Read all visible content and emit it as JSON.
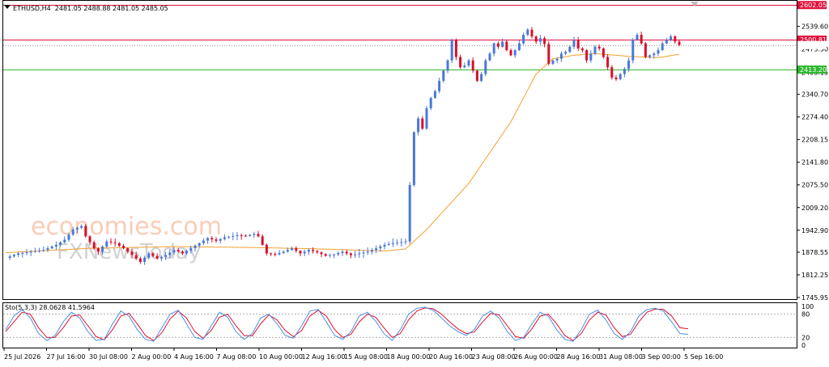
{
  "header": {
    "symbol": "ETHUSD,H4",
    "ohlc": "2481.05 2488.88 2481.05 2485.05"
  },
  "stoch_header": "Sto(5,3,3) 28.0628 41.5964",
  "watermark": {
    "line1": "economies.com",
    "line2": "FXNewsToday"
  },
  "chart_data": {
    "type": "candlestick",
    "title": "ETHUSD,H4",
    "ohlc_text": "2481.05 2488.88 2481.05 2485.05",
    "y_ticks": [
      2539.6,
      2405.15,
      2340.7,
      2274.4,
      2208.15,
      2141.8,
      2075.5,
      2009.2,
      1942.9,
      1878.55,
      1812.25,
      1745.95
    ],
    "ylim": [
      1745.95,
      2605
    ],
    "x_ticks": [
      "25 Jul 2026",
      "27 Jul 16:00",
      "30 Jul 08:00",
      "2 Aug 00:00",
      "4 Aug 16:00",
      "7 Aug 08:00",
      "10 Aug 00:00",
      "12 Aug 16:00",
      "15 Aug 08:00",
      "18 Aug 00:00",
      "20 Aug 16:00",
      "23 Aug 08:00",
      "26 Aug 00:00",
      "28 Aug 16:00",
      "31 Aug 08:00",
      "3 Sep 00:00",
      "5 Sep 16:00"
    ],
    "horizontal_lines": [
      {
        "value": 2602.05,
        "label": "2602.05",
        "color": "#e0113c"
      },
      {
        "value": 2500.81,
        "label": "2500.81",
        "color": "#e0113c"
      },
      {
        "value": 2413.2,
        "label": "2413.20",
        "color": "#2eb82e"
      }
    ],
    "current_price": {
      "value": 2485.05,
      "label": "2485.05"
    },
    "hidden_tick_label": "2473.50",
    "colors": {
      "up": "#4a78d8",
      "down": "#d8102c",
      "ma": "#f5a030",
      "stoch_main": "#4a90e2",
      "stoch_signal": "#e0112b"
    },
    "price_waypoints": [
      [
        0,
        1862
      ],
      [
        3,
        1875
      ],
      [
        6,
        1880
      ],
      [
        9,
        1885
      ],
      [
        12,
        1900
      ],
      [
        14,
        1915
      ],
      [
        16,
        1945
      ],
      [
        18,
        1955
      ],
      [
        19,
        1925
      ],
      [
        21,
        1890
      ],
      [
        22,
        1880
      ],
      [
        24,
        1910
      ],
      [
        26,
        1905
      ],
      [
        28,
        1890
      ],
      [
        30,
        1870
      ],
      [
        32,
        1850
      ],
      [
        34,
        1875
      ],
      [
        36,
        1860
      ],
      [
        38,
        1870
      ],
      [
        40,
        1885
      ],
      [
        42,
        1875
      ],
      [
        44,
        1890
      ],
      [
        46,
        1905
      ],
      [
        48,
        1920
      ],
      [
        50,
        1912
      ],
      [
        52,
        1922
      ],
      [
        55,
        1928
      ],
      [
        57,
        1926
      ],
      [
        59,
        1932
      ],
      [
        60,
        1925
      ],
      [
        62,
        1875
      ],
      [
        64,
        1872
      ],
      [
        66,
        1880
      ],
      [
        68,
        1890
      ],
      [
        70,
        1875
      ],
      [
        72,
        1885
      ],
      [
        74,
        1878
      ],
      [
        76,
        1868
      ],
      [
        78,
        1872
      ],
      [
        80,
        1880
      ],
      [
        82,
        1870
      ],
      [
        84,
        1875
      ],
      [
        86,
        1880
      ],
      [
        88,
        1890
      ],
      [
        90,
        1900
      ],
      [
        92,
        1905
      ],
      [
        94,
        1908
      ],
      [
        95,
        1910
      ],
      [
        96,
        2075
      ],
      [
        97,
        2230
      ],
      [
        98,
        2270
      ],
      [
        99,
        2240
      ],
      [
        100,
        2300
      ],
      [
        101,
        2330
      ],
      [
        102,
        2350
      ],
      [
        103,
        2380
      ],
      [
        104,
        2410
      ],
      [
        105,
        2440
      ],
      [
        106,
        2500
      ],
      [
        107,
        2450
      ],
      [
        108,
        2420
      ],
      [
        109,
        2425
      ],
      [
        110,
        2440
      ],
      [
        111,
        2410
      ],
      [
        112,
        2380
      ],
      [
        113,
        2400
      ],
      [
        114,
        2440
      ],
      [
        115,
        2460
      ],
      [
        116,
        2490
      ],
      [
        117,
        2480
      ],
      [
        118,
        2495
      ],
      [
        119,
        2470
      ],
      [
        120,
        2455
      ],
      [
        121,
        2470
      ],
      [
        122,
        2490
      ],
      [
        123,
        2515
      ],
      [
        124,
        2530
      ],
      [
        125,
        2510
      ],
      [
        126,
        2495
      ],
      [
        127,
        2505
      ],
      [
        128,
        2488
      ],
      [
        129,
        2430
      ],
      [
        130,
        2440
      ],
      [
        131,
        2445
      ],
      [
        132,
        2460
      ],
      [
        133,
        2465
      ],
      [
        134,
        2480
      ],
      [
        135,
        2500
      ],
      [
        136,
        2475
      ],
      [
        137,
        2470
      ],
      [
        138,
        2440
      ],
      [
        139,
        2460
      ],
      [
        140,
        2480
      ],
      [
        141,
        2475
      ],
      [
        142,
        2450
      ],
      [
        143,
        2420
      ],
      [
        144,
        2390
      ],
      [
        145,
        2385
      ],
      [
        146,
        2400
      ],
      [
        147,
        2415
      ],
      [
        148,
        2440
      ],
      [
        149,
        2500
      ],
      [
        150,
        2515
      ],
      [
        151,
        2490
      ],
      [
        152,
        2450
      ],
      [
        153,
        2455
      ],
      [
        154,
        2460
      ],
      [
        155,
        2470
      ],
      [
        156,
        2490
      ],
      [
        157,
        2500
      ],
      [
        158,
        2510
      ],
      [
        159,
        2495
      ],
      [
        160,
        2485
      ]
    ],
    "ma_waypoints": [
      [
        0,
        1877
      ],
      [
        20,
        1890
      ],
      [
        40,
        1895
      ],
      [
        60,
        1892
      ],
      [
        75,
        1888
      ],
      [
        90,
        1882
      ],
      [
        95,
        1888
      ],
      [
        100,
        1945
      ],
      [
        110,
        2080
      ],
      [
        120,
        2260
      ],
      [
        126,
        2400
      ],
      [
        130,
        2445
      ],
      [
        135,
        2455
      ],
      [
        140,
        2460
      ],
      [
        148,
        2452
      ],
      [
        155,
        2448
      ],
      [
        160,
        2458
      ]
    ],
    "stochastic": {
      "levels": [
        100,
        80,
        20,
        0
      ],
      "level_labels": [
        "100",
        "80",
        "20",
        "0"
      ],
      "main": [
        40,
        75,
        92,
        70,
        30,
        12,
        25,
        60,
        85,
        70,
        35,
        12,
        15,
        55,
        88,
        75,
        40,
        15,
        10,
        45,
        80,
        90,
        55,
        20,
        15,
        50,
        85,
        72,
        35,
        15,
        30,
        70,
        80,
        55,
        25,
        18,
        50,
        88,
        92,
        60,
        25,
        15,
        35,
        75,
        85,
        62,
        30,
        12,
        40,
        80,
        95,
        98,
        90,
        70,
        50,
        35,
        25,
        40,
        75,
        88,
        70,
        35,
        12,
        20,
        55,
        85,
        75,
        40,
        15,
        10,
        40,
        80,
        90,
        65,
        30,
        15,
        35,
        75,
        92,
        95,
        88,
        60,
        30,
        28
      ],
      "signal": [
        35,
        60,
        85,
        80,
        45,
        20,
        20,
        45,
        75,
        78,
        50,
        22,
        14,
        40,
        75,
        82,
        55,
        25,
        12,
        32,
        68,
        88,
        70,
        35,
        18,
        38,
        72,
        80,
        50,
        25,
        24,
        55,
        78,
        65,
        38,
        22,
        38,
        75,
        90,
        75,
        40,
        20,
        28,
        60,
        80,
        72,
        45,
        20,
        30,
        65,
        88,
        96,
        94,
        80,
        60,
        42,
        30,
        34,
        60,
        82,
        78,
        50,
        22,
        18,
        42,
        75,
        80,
        55,
        25,
        12,
        30,
        65,
        85,
        78,
        45,
        22,
        28,
        60,
        85,
        93,
        92,
        75,
        45,
        42
      ]
    }
  }
}
